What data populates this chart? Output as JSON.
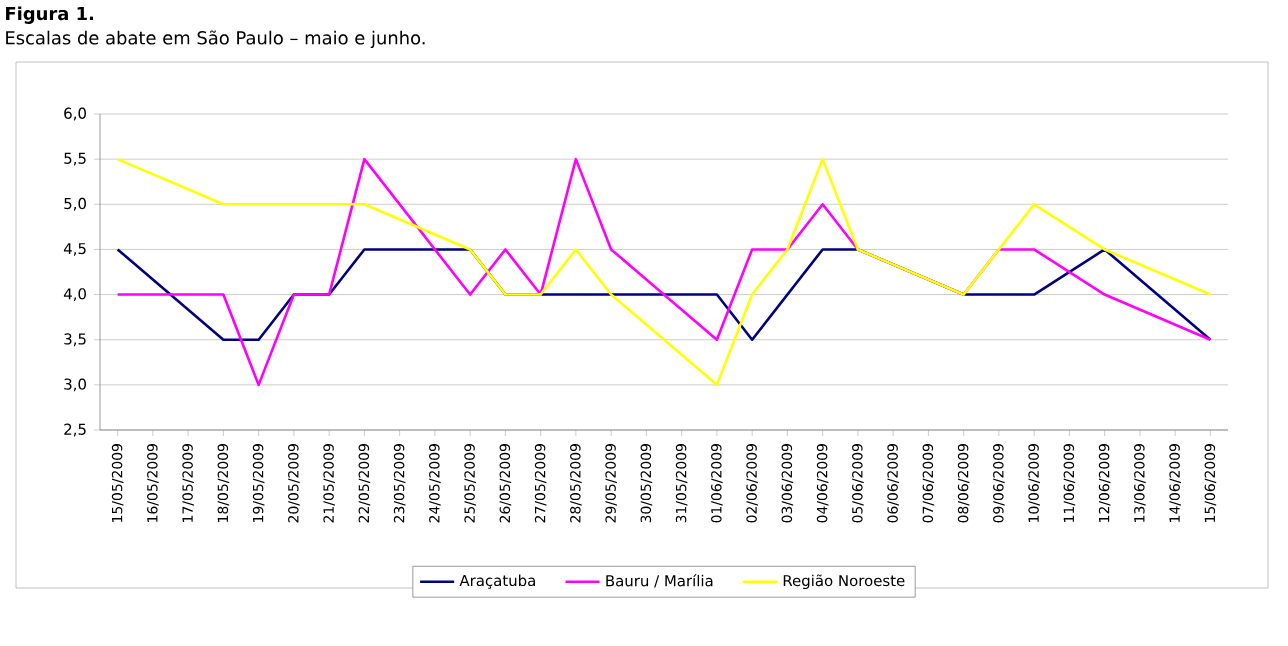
{
  "chart_data": {
    "type": "line",
    "title": "Figura 1.",
    "subtitle": "Escalas de abate em São Paulo – maio e junho.",
    "categories": [
      "15/05/2009",
      "16/05/2009",
      "17/05/2009",
      "18/05/2009",
      "19/05/2009",
      "20/05/2009",
      "21/05/2009",
      "22/05/2009",
      "23/05/2009",
      "24/05/2009",
      "25/05/2009",
      "26/05/2009",
      "27/05/2009",
      "28/05/2009",
      "29/05/2009",
      "30/05/2009",
      "31/05/2009",
      "01/06/2009",
      "02/06/2009",
      "03/06/2009",
      "04/06/2009",
      "05/06/2009",
      "06/06/2009",
      "07/06/2009",
      "08/06/2009",
      "09/06/2009",
      "10/06/2009",
      "11/06/2009",
      "12/06/2009",
      "13/06/2009",
      "14/06/2009",
      "15/06/2009"
    ],
    "series": [
      {
        "name": "Araçatuba",
        "color": "#000080",
        "values": [
          4.5,
          null,
          null,
          3.5,
          3.5,
          4.0,
          4.0,
          4.5,
          4.5,
          4.5,
          4.5,
          4.0,
          4.0,
          4.0,
          4.0,
          4.0,
          4.0,
          4.0,
          3.5,
          null,
          4.5,
          4.5,
          null,
          null,
          4.0,
          4.0,
          4.0,
          null,
          4.5,
          null,
          null,
          3.5
        ]
      },
      {
        "name": "Bauru / Marília",
        "color": "#ff00ff",
        "values": [
          4.0,
          null,
          null,
          4.0,
          3.0,
          4.0,
          4.0,
          5.5,
          5.0,
          4.5,
          4.0,
          4.5,
          4.0,
          5.5,
          4.5,
          null,
          null,
          3.5,
          4.5,
          4.5,
          5.0,
          4.5,
          null,
          null,
          4.0,
          4.5,
          4.5,
          null,
          4.0,
          null,
          null,
          3.5
        ]
      },
      {
        "name": "Região Noroeste",
        "color": "#ffff00",
        "values": [
          5.5,
          null,
          null,
          5.0,
          5.0,
          5.0,
          5.0,
          5.0,
          null,
          null,
          4.5,
          4.0,
          4.0,
          4.5,
          4.0,
          null,
          null,
          3.0,
          4.0,
          4.5,
          5.5,
          4.5,
          null,
          null,
          4.0,
          null,
          5.0,
          null,
          4.5,
          null,
          null,
          4.0
        ]
      }
    ],
    "ylim": [
      2.5,
      6.0
    ],
    "yticks": [
      {
        "value": 2.5,
        "label": "2,5"
      },
      {
        "value": 3.0,
        "label": "3,0"
      },
      {
        "value": 3.5,
        "label": "3,5"
      },
      {
        "value": 4.0,
        "label": "4,0"
      },
      {
        "value": 4.5,
        "label": "4,5"
      },
      {
        "value": 5.0,
        "label": "5,0"
      },
      {
        "value": 5.5,
        "label": "5,5"
      },
      {
        "value": 6.0,
        "label": "6,0"
      }
    ],
    "grid": "y",
    "legend": "bottom",
    "marker": "none",
    "line_style": "solid"
  }
}
